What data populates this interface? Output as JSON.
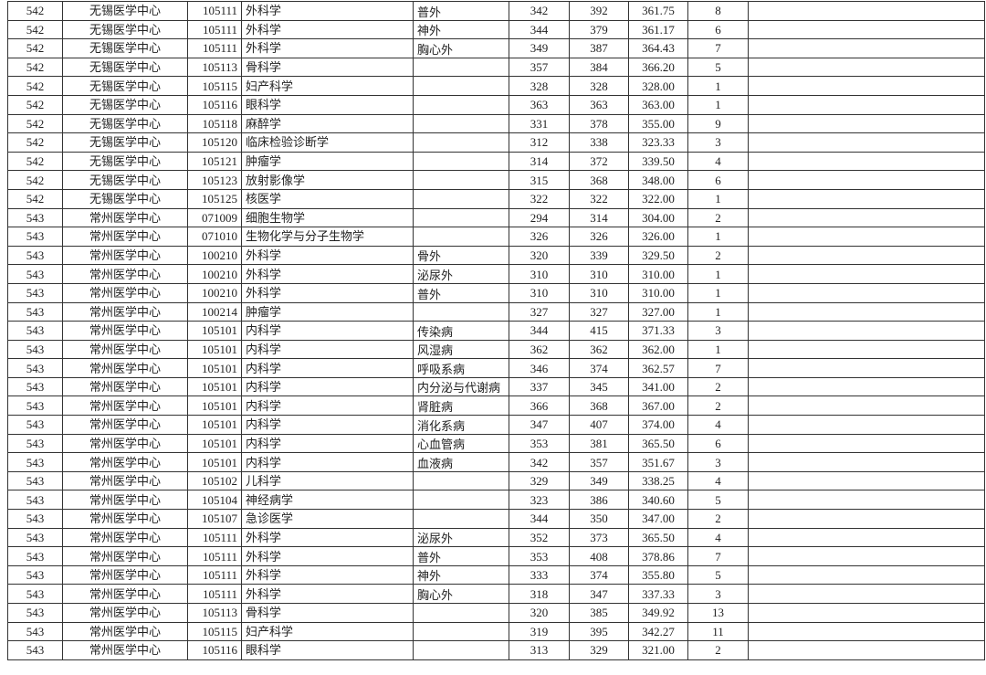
{
  "table": {
    "rows": [
      [
        "542",
        "无锡医学中心",
        "105111",
        "外科学",
        "普外",
        "342",
        "392",
        "361.75",
        "8",
        ""
      ],
      [
        "542",
        "无锡医学中心",
        "105111",
        "外科学",
        "神外",
        "344",
        "379",
        "361.17",
        "6",
        ""
      ],
      [
        "542",
        "无锡医学中心",
        "105111",
        "外科学",
        "胸心外",
        "349",
        "387",
        "364.43",
        "7",
        ""
      ],
      [
        "542",
        "无锡医学中心",
        "105113",
        "骨科学",
        "",
        "357",
        "384",
        "366.20",
        "5",
        ""
      ],
      [
        "542",
        "无锡医学中心",
        "105115",
        "妇产科学",
        "",
        "328",
        "328",
        "328.00",
        "1",
        ""
      ],
      [
        "542",
        "无锡医学中心",
        "105116",
        "眼科学",
        "",
        "363",
        "363",
        "363.00",
        "1",
        ""
      ],
      [
        "542",
        "无锡医学中心",
        "105118",
        "麻醉学",
        "",
        "331",
        "378",
        "355.00",
        "9",
        ""
      ],
      [
        "542",
        "无锡医学中心",
        "105120",
        "临床检验诊断学",
        "",
        "312",
        "338",
        "323.33",
        "3",
        ""
      ],
      [
        "542",
        "无锡医学中心",
        "105121",
        "肿瘤学",
        "",
        "314",
        "372",
        "339.50",
        "4",
        ""
      ],
      [
        "542",
        "无锡医学中心",
        "105123",
        "放射影像学",
        "",
        "315",
        "368",
        "348.00",
        "6",
        ""
      ],
      [
        "542",
        "无锡医学中心",
        "105125",
        "核医学",
        "",
        "322",
        "322",
        "322.00",
        "1",
        ""
      ],
      [
        "543",
        "常州医学中心",
        "071009",
        "细胞生物学",
        "",
        "294",
        "314",
        "304.00",
        "2",
        ""
      ],
      [
        "543",
        "常州医学中心",
        "071010",
        "生物化学与分子生物学",
        "",
        "326",
        "326",
        "326.00",
        "1",
        ""
      ],
      [
        "543",
        "常州医学中心",
        "100210",
        "外科学",
        "骨外",
        "320",
        "339",
        "329.50",
        "2",
        ""
      ],
      [
        "543",
        "常州医学中心",
        "100210",
        "外科学",
        "泌尿外",
        "310",
        "310",
        "310.00",
        "1",
        ""
      ],
      [
        "543",
        "常州医学中心",
        "100210",
        "外科学",
        "普外",
        "310",
        "310",
        "310.00",
        "1",
        ""
      ],
      [
        "543",
        "常州医学中心",
        "100214",
        "肿瘤学",
        "",
        "327",
        "327",
        "327.00",
        "1",
        ""
      ],
      [
        "543",
        "常州医学中心",
        "105101",
        "内科学",
        "传染病",
        "344",
        "415",
        "371.33",
        "3",
        ""
      ],
      [
        "543",
        "常州医学中心",
        "105101",
        "内科学",
        "风湿病",
        "362",
        "362",
        "362.00",
        "1",
        ""
      ],
      [
        "543",
        "常州医学中心",
        "105101",
        "内科学",
        "呼吸系病",
        "346",
        "374",
        "362.57",
        "7",
        ""
      ],
      [
        "543",
        "常州医学中心",
        "105101",
        "内科学",
        "内分泌与代谢病",
        "337",
        "345",
        "341.00",
        "2",
        ""
      ],
      [
        "543",
        "常州医学中心",
        "105101",
        "内科学",
        "肾脏病",
        "366",
        "368",
        "367.00",
        "2",
        ""
      ],
      [
        "543",
        "常州医学中心",
        "105101",
        "内科学",
        "消化系病",
        "347",
        "407",
        "374.00",
        "4",
        ""
      ],
      [
        "543",
        "常州医学中心",
        "105101",
        "内科学",
        "心血管病",
        "353",
        "381",
        "365.50",
        "6",
        ""
      ],
      [
        "543",
        "常州医学中心",
        "105101",
        "内科学",
        "血液病",
        "342",
        "357",
        "351.67",
        "3",
        ""
      ],
      [
        "543",
        "常州医学中心",
        "105102",
        "儿科学",
        "",
        "329",
        "349",
        "338.25",
        "4",
        ""
      ],
      [
        "543",
        "常州医学中心",
        "105104",
        "神经病学",
        "",
        "323",
        "386",
        "340.60",
        "5",
        ""
      ],
      [
        "543",
        "常州医学中心",
        "105107",
        "急诊医学",
        "",
        "344",
        "350",
        "347.00",
        "2",
        ""
      ],
      [
        "543",
        "常州医学中心",
        "105111",
        "外科学",
        "泌尿外",
        "352",
        "373",
        "365.50",
        "4",
        ""
      ],
      [
        "543",
        "常州医学中心",
        "105111",
        "外科学",
        "普外",
        "353",
        "408",
        "378.86",
        "7",
        ""
      ],
      [
        "543",
        "常州医学中心",
        "105111",
        "外科学",
        "神外",
        "333",
        "374",
        "355.80",
        "5",
        ""
      ],
      [
        "543",
        "常州医学中心",
        "105111",
        "外科学",
        "胸心外",
        "318",
        "347",
        "337.33",
        "3",
        ""
      ],
      [
        "543",
        "常州医学中心",
        "105113",
        "骨科学",
        "",
        "320",
        "385",
        "349.92",
        "13",
        ""
      ],
      [
        "543",
        "常州医学中心",
        "105115",
        "妇产科学",
        "",
        "319",
        "395",
        "342.27",
        "11",
        ""
      ],
      [
        "543",
        "常州医学中心",
        "105116",
        "眼科学",
        "",
        "313",
        "329",
        "321.00",
        "2",
        ""
      ]
    ]
  }
}
